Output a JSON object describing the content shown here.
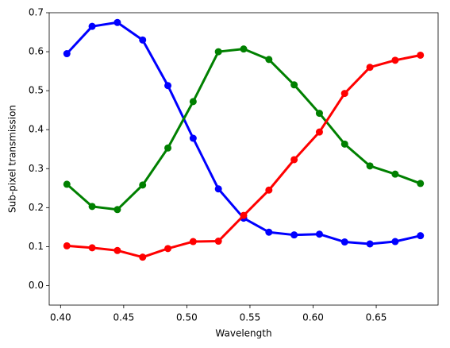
{
  "chart_data": {
    "type": "line",
    "xlabel": "Wavelength",
    "ylabel": "Sub-pixel transmission",
    "x": [
      0.405,
      0.425,
      0.445,
      0.465,
      0.485,
      0.505,
      0.525,
      0.545,
      0.565,
      0.585,
      0.605,
      0.625,
      0.645,
      0.665,
      0.685
    ],
    "series": [
      {
        "color": "#0000ff",
        "values": [
          0.595,
          0.665,
          0.675,
          0.63,
          0.513,
          0.378,
          0.248,
          0.173,
          0.137,
          0.13,
          0.132,
          0.112,
          0.107,
          0.113,
          0.128
        ]
      },
      {
        "color": "#008000",
        "values": [
          0.26,
          0.203,
          0.195,
          0.258,
          0.353,
          0.472,
          0.6,
          0.607,
          0.58,
          0.515,
          0.442,
          0.363,
          0.307,
          0.286,
          0.262
        ]
      },
      {
        "color": "#ff0000",
        "values": [
          0.102,
          0.097,
          0.09,
          0.073,
          0.095,
          0.113,
          0.114,
          0.18,
          0.245,
          0.323,
          0.394,
          0.493,
          0.56,
          0.578,
          0.591
        ]
      }
    ],
    "xlim": [
      0.391,
      0.699
    ],
    "ylim": [
      -0.05,
      0.7
    ],
    "xticks": [
      {
        "value": 0.4,
        "label": "0.40"
      },
      0.45,
      {
        "value": 0.5,
        "label": "0.50"
      },
      0.55,
      {
        "value": 0.6,
        "label": "0.60"
      },
      0.65
    ],
    "yticks": [
      {
        "value": 0,
        "label": "0.0"
      },
      0.1,
      0.2,
      0.3,
      0.4,
      0.5,
      0.6,
      0.7
    ],
    "grid": false
  }
}
